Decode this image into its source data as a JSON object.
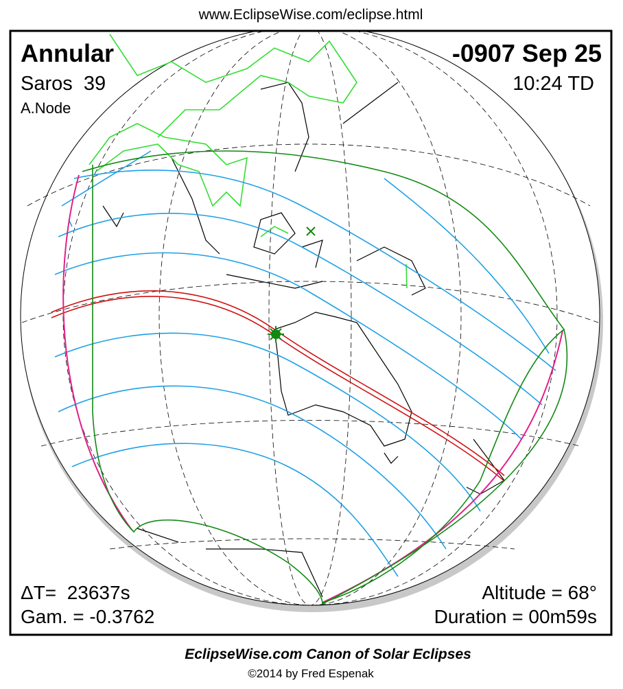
{
  "header": {
    "url": "www.EclipseWise.com/eclipse.html"
  },
  "panel": {
    "type": "Annular",
    "date": "-0907 Sep 25",
    "saros": "Saros  39",
    "time": "10:24 TD",
    "node": "A.Node",
    "delta_t": "ΔT=  23637s",
    "gamma": "Gam. = -0.3762",
    "altitude": "Altitude = 68°",
    "duration": "Duration = 00m59s"
  },
  "footer": {
    "title": "EclipseWise.com Canon of Solar Eclipses",
    "credit": "©2014 by Fred Espenak"
  }
}
